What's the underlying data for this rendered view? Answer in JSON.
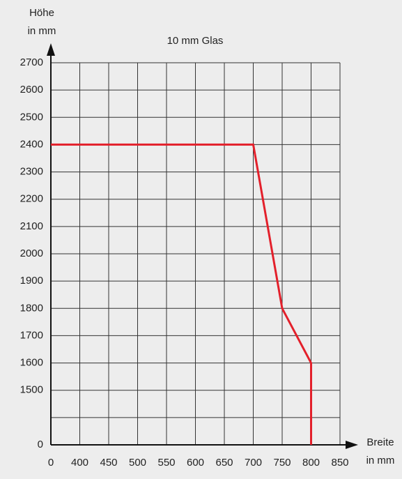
{
  "chart_data": {
    "type": "line",
    "title": "10 mm Glas",
    "y_label": [
      "Höhe",
      "in mm"
    ],
    "x_label": [
      "Breite",
      "in mm"
    ],
    "xticks": [
      0,
      400,
      450,
      500,
      550,
      600,
      650,
      700,
      750,
      800,
      850
    ],
    "yticks": [
      0,
      {
        "value": 1400,
        "label": null
      },
      1500,
      1600,
      1700,
      1800,
      1900,
      2000,
      2100,
      2200,
      2300,
      2400,
      2500,
      2600,
      2700
    ],
    "grid": true,
    "series": [
      {
        "name": null,
        "color": "#e3202b",
        "x": [
          0,
          700,
          750,
          800,
          800
        ],
        "values": [
          2400,
          2400,
          1800,
          1600,
          0
        ]
      }
    ]
  }
}
